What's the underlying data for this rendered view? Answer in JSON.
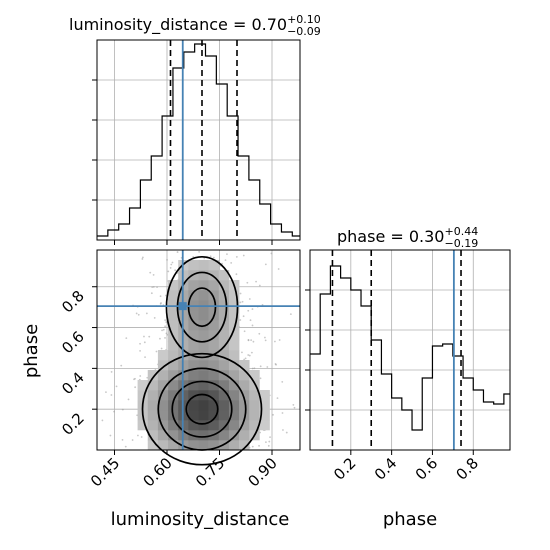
{
  "chart_data": {
    "type": "corner",
    "parameters": [
      "luminosity_distance",
      "phase"
    ],
    "truth_color": "#4682b4",
    "truths": {
      "luminosity_distance": 0.645,
      "phase": 0.705
    },
    "panels": [
      {
        "id": "hist-luminosity-distance",
        "type": "histogram",
        "parameter": "luminosity_distance",
        "title": {
          "main": "luminosity_distance = 0.70",
          "sup": "+0.10",
          "sub": "−0.09"
        },
        "xlim": [
          0.4,
          0.98
        ],
        "ylim": [
          0,
          1.0
        ],
        "bin_edges": [
          0.4,
          0.431,
          0.462,
          0.493,
          0.524,
          0.555,
          0.586,
          0.617,
          0.648,
          0.679,
          0.71,
          0.741,
          0.772,
          0.803,
          0.834,
          0.865,
          0.896,
          0.927,
          0.958,
          0.98
        ],
        "counts": [
          0.02,
          0.05,
          0.08,
          0.16,
          0.3,
          0.42,
          0.62,
          0.86,
          0.94,
          0.98,
          0.92,
          0.78,
          0.62,
          0.42,
          0.3,
          0.18,
          0.08,
          0.04,
          0.02
        ],
        "quantiles": [
          0.61,
          0.7,
          0.8
        ]
      },
      {
        "id": "2d-luminosity-phase",
        "type": "contour2d",
        "xparam": "luminosity_distance",
        "yparam": "phase",
        "xlim": [
          0.4,
          0.98
        ],
        "ylim": [
          0.0,
          0.98
        ],
        "xticks": [
          "0.45",
          "0.60",
          "0.75",
          "0.90"
        ],
        "xtick_values": [
          0.45,
          0.6,
          0.75,
          0.9
        ],
        "yticks": [
          "0.2",
          "0.4",
          "0.6",
          "0.8"
        ],
        "ytick_values": [
          0.2,
          0.4,
          0.6,
          0.8
        ],
        "xlabel": "luminosity_distance",
        "ylabel": "phase",
        "modes": [
          {
            "cx": 0.7,
            "cy": 0.7,
            "rx": 0.07,
            "ry": 0.17
          },
          {
            "cx": 0.7,
            "cy": 0.2,
            "rx": 0.1,
            "ry": 0.16
          }
        ]
      },
      {
        "id": "hist-phase",
        "type": "histogram",
        "parameter": "phase",
        "title": {
          "main": "phase = 0.30",
          "sup": "+0.44",
          "sub": "−0.19"
        },
        "xlim": [
          0.0,
          0.98
        ],
        "ylim": [
          0,
          1.0
        ],
        "bin_edges": [
          0.0,
          0.05,
          0.1,
          0.15,
          0.2,
          0.25,
          0.3,
          0.35,
          0.4,
          0.45,
          0.5,
          0.55,
          0.6,
          0.65,
          0.7,
          0.75,
          0.8,
          0.85,
          0.9,
          0.95,
          0.98
        ],
        "counts": [
          0.48,
          0.78,
          0.92,
          0.86,
          0.8,
          0.72,
          0.55,
          0.38,
          0.26,
          0.2,
          0.1,
          0.36,
          0.52,
          0.53,
          0.47,
          0.36,
          0.3,
          0.24,
          0.23,
          0.28
        ],
        "quantiles": [
          0.11,
          0.3,
          0.74
        ],
        "xticks": [
          "0.2",
          "0.4",
          "0.6",
          "0.8"
        ],
        "xtick_values": [
          0.2,
          0.4,
          0.6,
          0.8
        ],
        "xlabel": "phase"
      }
    ]
  }
}
